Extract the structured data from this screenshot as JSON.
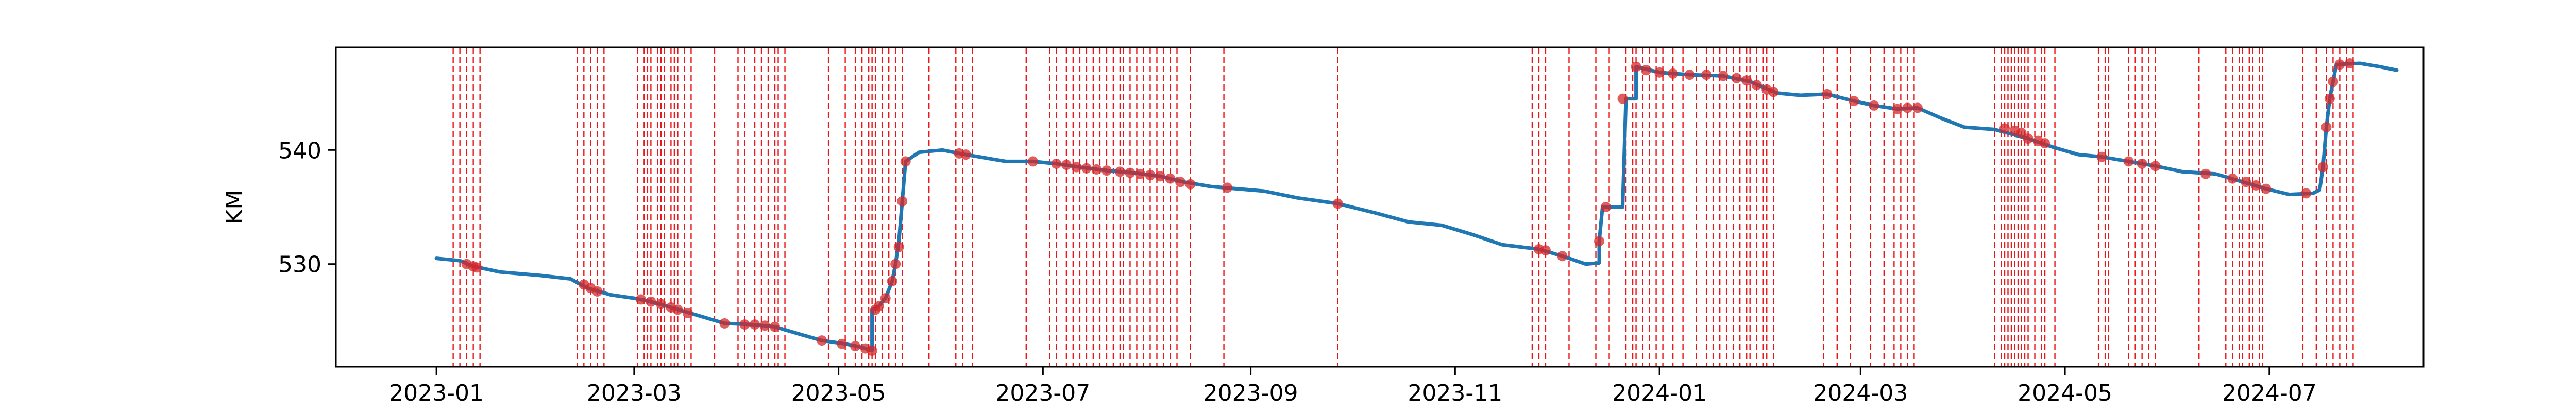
{
  "chart_data": {
    "type": "line",
    "title": "",
    "xlabel": "",
    "ylabel": "KM",
    "xlim": [
      "2022-12-02",
      "2024-08-16"
    ],
    "ylim": [
      521,
      549
    ],
    "grid": false,
    "x_ticks": [
      {
        "date": "2023-01-01",
        "label": "2023-01"
      },
      {
        "date": "2023-03-01",
        "label": "2023-03"
      },
      {
        "date": "2023-05-01",
        "label": "2023-05"
      },
      {
        "date": "2023-07-01",
        "label": "2023-07"
      },
      {
        "date": "2023-09-01",
        "label": "2023-09"
      },
      {
        "date": "2023-11-01",
        "label": "2023-11"
      },
      {
        "date": "2024-01-01",
        "label": "2024-01"
      },
      {
        "date": "2024-03-01",
        "label": "2024-03"
      },
      {
        "date": "2024-05-01",
        "label": "2024-05"
      },
      {
        "date": "2024-07-01",
        "label": "2024-07"
      }
    ],
    "y_ticks": [
      530,
      540
    ],
    "series": [
      {
        "color": "#1f77b4",
        "points": [
          [
            "2023-01-01",
            530.5
          ],
          [
            "2023-01-08",
            530.3
          ],
          [
            "2023-01-12",
            529.8
          ],
          [
            "2023-01-20",
            529.3
          ],
          [
            "2023-02-01",
            529.0
          ],
          [
            "2023-02-10",
            528.7
          ],
          [
            "2023-02-15",
            527.9
          ],
          [
            "2023-02-22",
            527.3
          ],
          [
            "2023-03-01",
            527.0
          ],
          [
            "2023-03-06",
            526.7
          ],
          [
            "2023-03-12",
            526.2
          ],
          [
            "2023-03-20",
            525.5
          ],
          [
            "2023-03-28",
            524.8
          ],
          [
            "2023-04-05",
            524.7
          ],
          [
            "2023-04-12",
            524.5
          ],
          [
            "2023-04-20",
            523.8
          ],
          [
            "2023-04-26",
            523.3
          ],
          [
            "2023-05-03",
            523.0
          ],
          [
            "2023-05-08",
            522.7
          ],
          [
            "2023-05-11",
            522.4
          ],
          [
            "2023-05-11",
            526.0
          ],
          [
            "2023-05-13",
            526.3
          ],
          [
            "2023-05-15",
            527.0
          ],
          [
            "2023-05-17",
            528.5
          ],
          [
            "2023-05-18",
            530.0
          ],
          [
            "2023-05-19",
            532.0
          ],
          [
            "2023-05-20",
            535.5
          ],
          [
            "2023-05-21",
            539.0
          ],
          [
            "2023-05-25",
            539.8
          ],
          [
            "2023-06-01",
            540.0
          ],
          [
            "2023-06-06",
            539.7
          ],
          [
            "2023-06-12",
            539.4
          ],
          [
            "2023-06-20",
            539.0
          ],
          [
            "2023-06-28",
            539.0
          ],
          [
            "2023-07-05",
            538.8
          ],
          [
            "2023-07-12",
            538.5
          ],
          [
            "2023-07-20",
            538.2
          ],
          [
            "2023-07-28",
            538.0
          ],
          [
            "2023-08-05",
            537.7
          ],
          [
            "2023-08-12",
            537.2
          ],
          [
            "2023-08-20",
            536.8
          ],
          [
            "2023-08-28",
            536.6
          ],
          [
            "2023-09-05",
            536.4
          ],
          [
            "2023-09-15",
            535.8
          ],
          [
            "2023-09-27",
            535.3
          ],
          [
            "2023-10-08",
            534.5
          ],
          [
            "2023-10-18",
            533.7
          ],
          [
            "2023-10-28",
            533.4
          ],
          [
            "2023-11-06",
            532.6
          ],
          [
            "2023-11-15",
            531.7
          ],
          [
            "2023-11-26",
            531.3
          ],
          [
            "2023-12-03",
            530.7
          ],
          [
            "2023-12-10",
            530.0
          ],
          [
            "2023-12-14",
            530.1
          ],
          [
            "2023-12-14",
            532.0
          ],
          [
            "2023-12-15",
            535.0
          ],
          [
            "2023-12-21",
            535.0
          ],
          [
            "2023-12-22",
            544.5
          ],
          [
            "2023-12-25",
            544.5
          ],
          [
            "2023-12-25",
            547.3
          ],
          [
            "2024-01-01",
            546.8
          ],
          [
            "2024-01-10",
            546.6
          ],
          [
            "2024-01-20",
            546.5
          ],
          [
            "2024-01-28",
            546.0
          ],
          [
            "2024-02-05",
            545.0
          ],
          [
            "2024-02-12",
            544.8
          ],
          [
            "2024-02-20",
            544.9
          ],
          [
            "2024-02-28",
            544.3
          ],
          [
            "2024-03-05",
            543.9
          ],
          [
            "2024-03-12",
            543.6
          ],
          [
            "2024-03-18",
            543.7
          ],
          [
            "2024-03-25",
            542.8
          ],
          [
            "2024-04-01",
            542.0
          ],
          [
            "2024-04-10",
            541.8
          ],
          [
            "2024-04-20",
            541.0
          ],
          [
            "2024-04-28",
            540.2
          ],
          [
            "2024-05-05",
            539.6
          ],
          [
            "2024-05-12",
            539.4
          ],
          [
            "2024-05-20",
            539.0
          ],
          [
            "2024-05-28",
            538.6
          ],
          [
            "2024-06-05",
            538.1
          ],
          [
            "2024-06-15",
            537.9
          ],
          [
            "2024-06-22",
            537.3
          ],
          [
            "2024-06-30",
            536.6
          ],
          [
            "2024-07-07",
            536.1
          ],
          [
            "2024-07-14",
            536.2
          ],
          [
            "2024-07-16",
            536.5
          ],
          [
            "2024-07-17",
            538.5
          ],
          [
            "2024-07-18",
            542.0
          ],
          [
            "2024-07-19",
            544.5
          ],
          [
            "2024-07-20",
            546.0
          ],
          [
            "2024-07-21",
            547.5
          ],
          [
            "2024-07-28",
            547.6
          ],
          [
            "2024-08-03",
            547.3
          ],
          [
            "2024-08-08",
            547.0
          ]
        ]
      }
    ],
    "markers": {
      "color": "#d62728",
      "points": [
        [
          "2023-01-10",
          530.0
        ],
        [
          "2023-01-12",
          529.8
        ],
        [
          "2023-01-13",
          529.7
        ],
        [
          "2023-02-14",
          528.2
        ],
        [
          "2023-02-16",
          527.9
        ],
        [
          "2023-02-18",
          527.6
        ],
        [
          "2023-03-03",
          526.9
        ],
        [
          "2023-03-06",
          526.7
        ],
        [
          "2023-03-09",
          526.5
        ],
        [
          "2023-03-12",
          526.2
        ],
        [
          "2023-03-14",
          526.0
        ],
        [
          "2023-03-17",
          525.7
        ],
        [
          "2023-03-28",
          524.8
        ],
        [
          "2023-04-03",
          524.7
        ],
        [
          "2023-04-06",
          524.7
        ],
        [
          "2023-04-09",
          524.6
        ],
        [
          "2023-04-12",
          524.5
        ],
        [
          "2023-04-26",
          523.3
        ],
        [
          "2023-05-02",
          523.0
        ],
        [
          "2023-05-06",
          522.8
        ],
        [
          "2023-05-09",
          522.6
        ],
        [
          "2023-05-11",
          522.4
        ],
        [
          "2023-05-12",
          526.0
        ],
        [
          "2023-05-13",
          526.3
        ],
        [
          "2023-05-15",
          527.0
        ],
        [
          "2023-05-17",
          528.5
        ],
        [
          "2023-05-18",
          530.0
        ],
        [
          "2023-05-19",
          531.5
        ],
        [
          "2023-05-20",
          535.5
        ],
        [
          "2023-05-21",
          539.0
        ],
        [
          "2023-06-06",
          539.7
        ],
        [
          "2023-06-08",
          539.6
        ],
        [
          "2023-06-28",
          539.0
        ],
        [
          "2023-07-05",
          538.8
        ],
        [
          "2023-07-08",
          538.7
        ],
        [
          "2023-07-11",
          538.5
        ],
        [
          "2023-07-14",
          538.4
        ],
        [
          "2023-07-17",
          538.3
        ],
        [
          "2023-07-20",
          538.2
        ],
        [
          "2023-07-24",
          538.1
        ],
        [
          "2023-07-27",
          538.0
        ],
        [
          "2023-07-30",
          537.9
        ],
        [
          "2023-08-02",
          537.8
        ],
        [
          "2023-08-05",
          537.7
        ],
        [
          "2023-08-08",
          537.5
        ],
        [
          "2023-08-11",
          537.2
        ],
        [
          "2023-08-14",
          537.0
        ],
        [
          "2023-08-25",
          536.7
        ],
        [
          "2023-09-27",
          535.3
        ],
        [
          "2023-11-26",
          531.3
        ],
        [
          "2023-11-28",
          531.2
        ],
        [
          "2023-12-03",
          530.7
        ],
        [
          "2023-12-14",
          532.0
        ],
        [
          "2023-12-16",
          535.0
        ],
        [
          "2023-12-21",
          544.5
        ],
        [
          "2023-12-25",
          547.3
        ],
        [
          "2023-12-28",
          547.0
        ],
        [
          "2024-01-01",
          546.8
        ],
        [
          "2024-01-05",
          546.7
        ],
        [
          "2024-01-10",
          546.6
        ],
        [
          "2024-01-15",
          546.6
        ],
        [
          "2024-01-20",
          546.5
        ],
        [
          "2024-01-24",
          546.3
        ],
        [
          "2024-01-27",
          546.1
        ],
        [
          "2024-01-30",
          545.7
        ],
        [
          "2024-02-02",
          545.3
        ],
        [
          "2024-02-04",
          545.1
        ],
        [
          "2024-02-20",
          544.9
        ],
        [
          "2024-02-28",
          544.3
        ],
        [
          "2024-03-05",
          543.9
        ],
        [
          "2024-03-12",
          543.6
        ],
        [
          "2024-03-15",
          543.7
        ],
        [
          "2024-03-18",
          543.7
        ],
        [
          "2024-04-13",
          541.9
        ],
        [
          "2024-04-16",
          541.7
        ],
        [
          "2024-04-18",
          541.5
        ],
        [
          "2024-04-20",
          541.0
        ],
        [
          "2024-04-23",
          540.8
        ],
        [
          "2024-04-25",
          540.6
        ],
        [
          "2024-05-12",
          539.4
        ],
        [
          "2024-05-20",
          539.0
        ],
        [
          "2024-05-24",
          538.8
        ],
        [
          "2024-05-28",
          538.6
        ],
        [
          "2024-06-12",
          537.9
        ],
        [
          "2024-06-20",
          537.5
        ],
        [
          "2024-06-24",
          537.2
        ],
        [
          "2024-06-27",
          536.9
        ],
        [
          "2024-06-30",
          536.6
        ],
        [
          "2024-07-12",
          536.2
        ],
        [
          "2024-07-17",
          538.5
        ],
        [
          "2024-07-18",
          542.0
        ],
        [
          "2024-07-19",
          544.5
        ],
        [
          "2024-07-20",
          546.0
        ],
        [
          "2024-07-22",
          547.5
        ],
        [
          "2024-07-25",
          547.6
        ]
      ]
    },
    "vlines": {
      "color": "#e8191c",
      "style": "dashed",
      "dates": [
        "2023-01-06",
        "2023-01-08",
        "2023-01-10",
        "2023-01-12",
        "2023-01-14",
        "2023-02-12",
        "2023-02-14",
        "2023-02-16",
        "2023-02-18",
        "2023-02-20",
        "2023-03-02",
        "2023-03-04",
        "2023-03-05",
        "2023-03-06",
        "2023-03-08",
        "2023-03-09",
        "2023-03-10",
        "2023-03-12",
        "2023-03-13",
        "2023-03-14",
        "2023-03-16",
        "2023-03-18",
        "2023-03-25",
        "2023-04-01",
        "2023-04-03",
        "2023-04-06",
        "2023-04-08",
        "2023-04-10",
        "2023-04-12",
        "2023-04-13",
        "2023-04-15",
        "2023-04-28",
        "2023-05-03",
        "2023-05-06",
        "2023-05-08",
        "2023-05-10",
        "2023-05-11",
        "2023-05-12",
        "2023-05-14",
        "2023-05-16",
        "2023-05-18",
        "2023-05-20",
        "2023-05-28",
        "2023-06-05",
        "2023-06-07",
        "2023-06-10",
        "2023-06-26",
        "2023-07-03",
        "2023-07-05",
        "2023-07-08",
        "2023-07-10",
        "2023-07-12",
        "2023-07-14",
        "2023-07-16",
        "2023-07-18",
        "2023-07-20",
        "2023-07-22",
        "2023-07-24",
        "2023-07-25",
        "2023-07-27",
        "2023-07-29",
        "2023-07-31",
        "2023-08-02",
        "2023-08-04",
        "2023-08-06",
        "2023-08-08",
        "2023-08-10",
        "2023-08-14",
        "2023-08-24",
        "2023-09-27",
        "2023-11-24",
        "2023-11-26",
        "2023-11-28",
        "2023-12-05",
        "2023-12-13",
        "2023-12-17",
        "2023-12-22",
        "2023-12-24",
        "2023-12-25",
        "2023-12-27",
        "2023-12-29",
        "2023-12-31",
        "2024-01-02",
        "2024-01-05",
        "2024-01-08",
        "2024-01-12",
        "2024-01-15",
        "2024-01-17",
        "2024-01-19",
        "2024-01-21",
        "2024-01-23",
        "2024-01-25",
        "2024-01-27",
        "2024-01-28",
        "2024-01-30",
        "2024-02-01",
        "2024-02-02",
        "2024-02-04",
        "2024-02-19",
        "2024-02-23",
        "2024-02-27",
        "2024-03-04",
        "2024-03-08",
        "2024-03-11",
        "2024-03-13",
        "2024-03-15",
        "2024-03-17",
        "2024-04-10",
        "2024-04-12",
        "2024-04-13",
        "2024-04-14",
        "2024-04-15",
        "2024-04-16",
        "2024-04-17",
        "2024-04-18",
        "2024-04-19",
        "2024-04-20",
        "2024-04-22",
        "2024-04-24",
        "2024-04-25",
        "2024-04-28",
        "2024-05-11",
        "2024-05-13",
        "2024-05-14",
        "2024-05-20",
        "2024-05-22",
        "2024-05-24",
        "2024-05-26",
        "2024-05-28",
        "2024-06-10",
        "2024-06-18",
        "2024-06-20",
        "2024-06-22",
        "2024-06-23",
        "2024-06-25",
        "2024-06-26",
        "2024-06-28",
        "2024-06-29",
        "2024-07-11",
        "2024-07-15",
        "2024-07-18",
        "2024-07-20",
        "2024-07-22",
        "2024-07-24",
        "2024-07-26"
      ]
    }
  }
}
